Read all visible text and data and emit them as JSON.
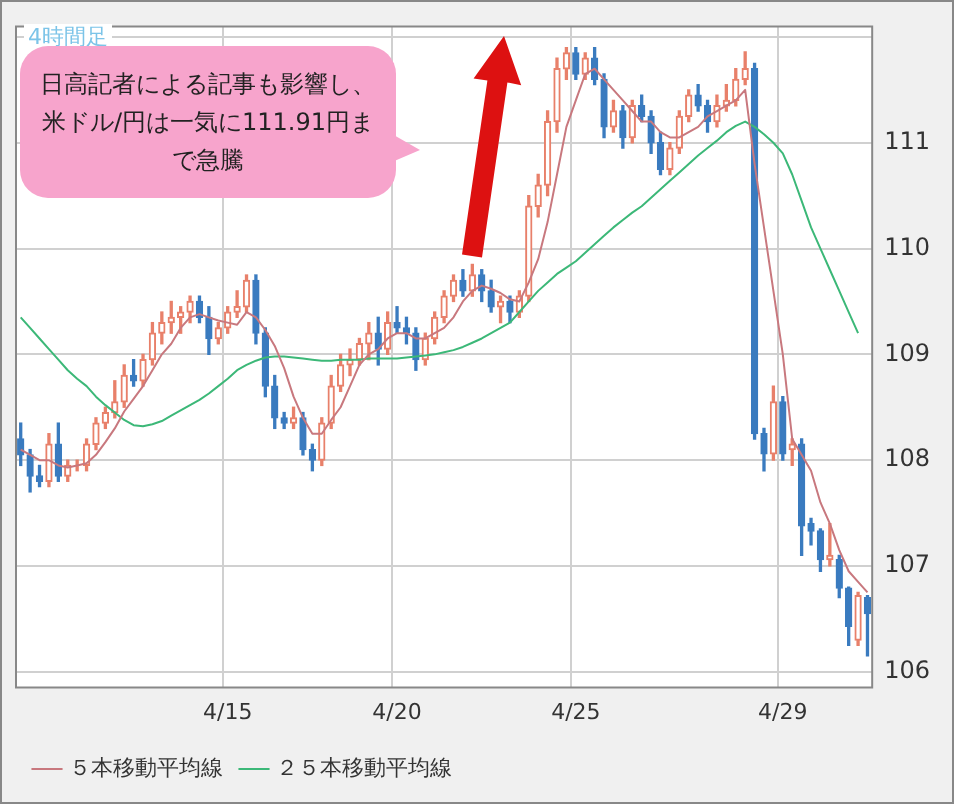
{
  "chart_data": {
    "type": "candlestick",
    "title": "4時間足",
    "annotations": [
      "日高記者による記事も影響し、米ドル/円は一気に111.91円まで急騰"
    ],
    "categories": [
      null,
      null,
      null,
      null,
      null,
      null,
      null,
      null,
      null,
      null,
      null,
      null,
      null,
      null,
      null,
      null,
      null,
      null,
      null,
      null,
      null,
      null,
      "4/15",
      null,
      null,
      null,
      null,
      null,
      null,
      null,
      null,
      null,
      null,
      null,
      null,
      null,
      null,
      null,
      null,
      null,
      "4/20",
      null,
      null,
      null,
      null,
      null,
      null,
      null,
      null,
      null,
      null,
      null,
      null,
      null,
      null,
      null,
      null,
      null,
      null,
      "4/25",
      null,
      null,
      null,
      null,
      null,
      null,
      null,
      null,
      null,
      null,
      null,
      null,
      null,
      null,
      null,
      null,
      null,
      null,
      null,
      null,
      null,
      "4/29",
      null,
      null,
      null,
      null,
      null,
      null,
      null,
      null,
      null
    ],
    "series": [
      {
        "ohlc": [
          [
            108.2,
            108.35,
            107.95,
            108.05
          ],
          [
            108.05,
            108.1,
            107.7,
            107.85
          ],
          [
            107.85,
            107.95,
            107.75,
            107.8
          ],
          [
            107.8,
            108.25,
            107.75,
            108.15
          ],
          [
            108.15,
            108.35,
            107.8,
            107.85
          ],
          [
            107.85,
            108.0,
            107.8,
            107.95
          ],
          [
            107.95,
            108.0,
            107.9,
            107.95
          ],
          [
            107.95,
            108.2,
            107.9,
            108.15
          ],
          [
            108.15,
            108.4,
            108.1,
            108.35
          ],
          [
            108.35,
            108.5,
            108.3,
            108.45
          ],
          [
            108.45,
            108.75,
            108.4,
            108.55
          ],
          [
            108.55,
            108.9,
            108.5,
            108.8
          ],
          [
            108.8,
            108.95,
            108.7,
            108.75
          ],
          [
            108.75,
            109.0,
            108.7,
            108.95
          ],
          [
            108.95,
            109.3,
            108.9,
            109.2
          ],
          [
            109.2,
            109.4,
            109.1,
            109.3
          ],
          [
            109.3,
            109.5,
            109.2,
            109.35
          ],
          [
            109.35,
            109.45,
            109.2,
            109.4
          ],
          [
            109.4,
            109.55,
            109.3,
            109.5
          ],
          [
            109.5,
            109.55,
            109.3,
            109.35
          ],
          [
            109.35,
            109.45,
            109.0,
            109.15
          ],
          [
            109.15,
            109.3,
            109.1,
            109.25
          ],
          [
            109.25,
            109.45,
            109.2,
            109.4
          ],
          [
            109.4,
            109.6,
            109.35,
            109.45
          ],
          [
            109.45,
            109.75,
            109.4,
            109.7
          ],
          [
            109.7,
            109.75,
            109.1,
            109.2
          ],
          [
            109.2,
            109.25,
            108.6,
            108.7
          ],
          [
            108.7,
            108.8,
            108.3,
            108.4
          ],
          [
            108.4,
            108.45,
            108.3,
            108.35
          ],
          [
            108.35,
            108.5,
            108.3,
            108.4
          ],
          [
            108.4,
            108.45,
            108.05,
            108.1
          ],
          [
            108.1,
            108.15,
            107.9,
            108.0
          ],
          [
            108.0,
            108.4,
            107.95,
            108.35
          ],
          [
            108.35,
            108.8,
            108.3,
            108.7
          ],
          [
            108.7,
            109.0,
            108.65,
            108.9
          ],
          [
            108.9,
            109.05,
            108.8,
            108.95
          ],
          [
            108.95,
            109.15,
            108.9,
            109.1
          ],
          [
            109.1,
            109.3,
            108.95,
            109.2
          ],
          [
            109.2,
            109.35,
            108.9,
            109.05
          ],
          [
            109.05,
            109.4,
            109.0,
            109.3
          ],
          [
            109.3,
            109.45,
            109.2,
            109.25
          ],
          [
            109.25,
            109.35,
            109.1,
            109.2
          ],
          [
            109.2,
            109.25,
            108.85,
            108.95
          ],
          [
            108.95,
            109.2,
            108.9,
            109.15
          ],
          [
            109.15,
            109.4,
            109.1,
            109.35
          ],
          [
            109.35,
            109.6,
            109.3,
            109.55
          ],
          [
            109.55,
            109.75,
            109.5,
            109.7
          ],
          [
            109.7,
            109.8,
            109.55,
            109.6
          ],
          [
            109.6,
            109.85,
            109.55,
            109.75
          ],
          [
            109.75,
            109.8,
            109.5,
            109.6
          ],
          [
            109.6,
            109.7,
            109.4,
            109.45
          ],
          [
            109.45,
            109.55,
            109.3,
            109.5
          ],
          [
            109.5,
            109.55,
            109.3,
            109.4
          ],
          [
            109.4,
            109.6,
            109.35,
            109.55
          ],
          [
            109.55,
            110.5,
            109.5,
            110.4
          ],
          [
            110.4,
            110.7,
            110.3,
            110.6
          ],
          [
            110.6,
            111.3,
            110.5,
            111.2
          ],
          [
            111.2,
            111.8,
            111.1,
            111.7
          ],
          [
            111.7,
            111.9,
            111.6,
            111.85
          ],
          [
            111.85,
            111.9,
            111.6,
            111.65
          ],
          [
            111.65,
            111.85,
            111.6,
            111.8
          ],
          [
            111.8,
            111.9,
            111.55,
            111.6
          ],
          [
            111.6,
            111.65,
            111.05,
            111.15
          ],
          [
            111.15,
            111.4,
            111.1,
            111.3
          ],
          [
            111.3,
            111.35,
            110.95,
            111.05
          ],
          [
            111.05,
            111.4,
            111.0,
            111.35
          ],
          [
            111.35,
            111.45,
            111.2,
            111.25
          ],
          [
            111.25,
            111.3,
            110.9,
            111.0
          ],
          [
            111.0,
            111.1,
            110.7,
            110.75
          ],
          [
            110.75,
            111.0,
            110.7,
            110.95
          ],
          [
            110.95,
            111.3,
            110.9,
            111.25
          ],
          [
            111.25,
            111.5,
            111.2,
            111.45
          ],
          [
            111.45,
            111.55,
            111.3,
            111.35
          ],
          [
            111.35,
            111.4,
            111.1,
            111.2
          ],
          [
            111.2,
            111.45,
            111.15,
            111.35
          ],
          [
            111.35,
            111.55,
            111.3,
            111.4
          ],
          [
            111.4,
            111.7,
            111.35,
            111.6
          ],
          [
            111.6,
            111.86,
            111.55,
            111.7
          ],
          [
            111.7,
            111.75,
            108.2,
            108.25
          ],
          [
            108.25,
            108.3,
            107.9,
            108.06
          ],
          [
            108.06,
            108.7,
            108.0,
            108.55
          ],
          [
            108.55,
            108.6,
            108.0,
            108.06
          ],
          [
            108.1,
            108.2,
            107.95,
            108.15
          ],
          [
            108.15,
            108.2,
            107.1,
            107.38
          ],
          [
            107.4,
            107.45,
            107.2,
            107.33
          ],
          [
            107.33,
            107.35,
            106.95,
            107.06
          ],
          [
            107.06,
            107.4,
            107.0,
            107.1
          ],
          [
            107.06,
            107.1,
            106.7,
            106.79
          ],
          [
            106.79,
            106.8,
            106.25,
            106.43
          ],
          [
            106.3,
            106.75,
            106.25,
            106.72
          ],
          [
            106.7,
            106.72,
            106.15,
            106.55
          ]
        ],
        "colors": [
          "#3a7bbf",
          "#3a7bbf",
          "#3a7bbf",
          "#e8806a",
          "#3a7bbf",
          "#e8806a",
          "#e8806a",
          "#e8806a",
          "#e8806a",
          "#e8806a",
          "#e8806a",
          "#e8806a",
          "#3a7bbf",
          "#e8806a",
          "#e8806a",
          "#e8806a",
          "#e8806a",
          "#e8806a",
          "#e8806a",
          "#3a7bbf",
          "#3a7bbf",
          "#e8806a",
          "#e8806a",
          "#e8806a",
          "#e8806a",
          "#3a7bbf",
          "#3a7bbf",
          "#3a7bbf",
          "#3a7bbf",
          "#e8806a",
          "#3a7bbf",
          "#3a7bbf",
          "#e8806a",
          "#e8806a",
          "#e8806a",
          "#e8806a",
          "#e8806a",
          "#e8806a",
          "#3a7bbf",
          "#e8806a",
          "#3a7bbf",
          "#3a7bbf",
          "#3a7bbf",
          "#e8806a",
          "#e8806a",
          "#e8806a",
          "#e8806a",
          "#3a7bbf",
          "#e8806a",
          "#3a7bbf",
          "#3a7bbf",
          "#e8806a",
          "#3a7bbf",
          "#e8806a",
          "#e8806a",
          "#e8806a",
          "#e8806a",
          "#e8806a",
          "#e8806a",
          "#3a7bbf",
          "#e8806a",
          "#3a7bbf",
          "#3a7bbf",
          "#e8806a",
          "#3a7bbf",
          "#e8806a",
          "#3a7bbf",
          "#3a7bbf",
          "#3a7bbf",
          "#e8806a",
          "#e8806a",
          "#e8806a",
          "#3a7bbf",
          "#3a7bbf",
          "#e8806a",
          "#e8806a",
          "#e8806a",
          "#e8806a",
          "#3a7bbf",
          "#3a7bbf",
          "#e8806a",
          "#3a7bbf",
          "#e8806a",
          "#3a7bbf",
          "#3a7bbf",
          "#3a7bbf",
          "#e8806a",
          "#3a7bbf",
          "#3a7bbf",
          "#e8806a",
          "#3a7bbf"
        ]
      },
      {
        "type": "line",
        "name": "５本移動平均線",
        "color": "#c8787e",
        "values": [
          108.1,
          108.05,
          108.0,
          108.0,
          107.95,
          107.93,
          107.95,
          107.97,
          108.05,
          108.17,
          108.3,
          108.46,
          108.58,
          108.7,
          108.85,
          109.0,
          109.1,
          109.25,
          109.35,
          109.38,
          109.35,
          109.32,
          109.3,
          109.28,
          109.4,
          109.35,
          109.23,
          109.08,
          108.87,
          108.6,
          108.4,
          108.25,
          108.25,
          108.38,
          108.5,
          108.7,
          108.9,
          109.0,
          109.05,
          109.15,
          109.2,
          109.2,
          109.15,
          109.15,
          109.2,
          109.25,
          109.35,
          109.5,
          109.6,
          109.65,
          109.62,
          109.58,
          109.52,
          109.5,
          109.68,
          109.9,
          110.25,
          110.7,
          111.15,
          111.4,
          111.65,
          111.7,
          111.6,
          111.5,
          111.4,
          111.3,
          111.2,
          111.2,
          111.1,
          111.05,
          111.05,
          111.1,
          111.15,
          111.25,
          111.3,
          111.35,
          111.4,
          111.5,
          110.8,
          110.2,
          109.6,
          109.0,
          108.2,
          108.05,
          107.9,
          107.6,
          107.4,
          107.15,
          106.95,
          106.85,
          106.75
        ]
      },
      {
        "type": "line",
        "name": "２５本移動平均線",
        "color": "#3cb878",
        "values": [
          109.35,
          109.25,
          109.15,
          109.05,
          108.95,
          108.85,
          108.77,
          108.7,
          108.6,
          108.52,
          108.45,
          108.38,
          108.33,
          108.32,
          108.34,
          108.37,
          108.42,
          108.47,
          108.52,
          108.57,
          108.63,
          108.7,
          108.77,
          108.85,
          108.9,
          108.94,
          108.97,
          108.98,
          108.98,
          108.97,
          108.96,
          108.95,
          108.94,
          108.94,
          108.95,
          108.95,
          108.95,
          108.96,
          108.96,
          108.96,
          108.96,
          108.97,
          108.98,
          108.99,
          109.0,
          109.02,
          109.04,
          109.07,
          109.11,
          109.15,
          109.2,
          109.25,
          109.3,
          109.4,
          109.5,
          109.6,
          109.68,
          109.76,
          109.82,
          109.88,
          109.96,
          110.04,
          110.12,
          110.2,
          110.27,
          110.34,
          110.4,
          110.48,
          110.56,
          110.64,
          110.72,
          110.8,
          110.88,
          110.95,
          111.02,
          111.1,
          111.16,
          111.2,
          111.15,
          111.08,
          111.0,
          110.9,
          110.7,
          110.45,
          110.2,
          110.0,
          109.8,
          109.6,
          109.4,
          109.2,
          null
        ]
      }
    ],
    "ylim": [
      105.85,
      112.1
    ],
    "yticks": [
      106,
      107,
      108,
      109,
      110,
      111,
      {
        "value": 112,
        "label": null
      }
    ],
    "grid": true,
    "legend": "bottom left"
  }
}
